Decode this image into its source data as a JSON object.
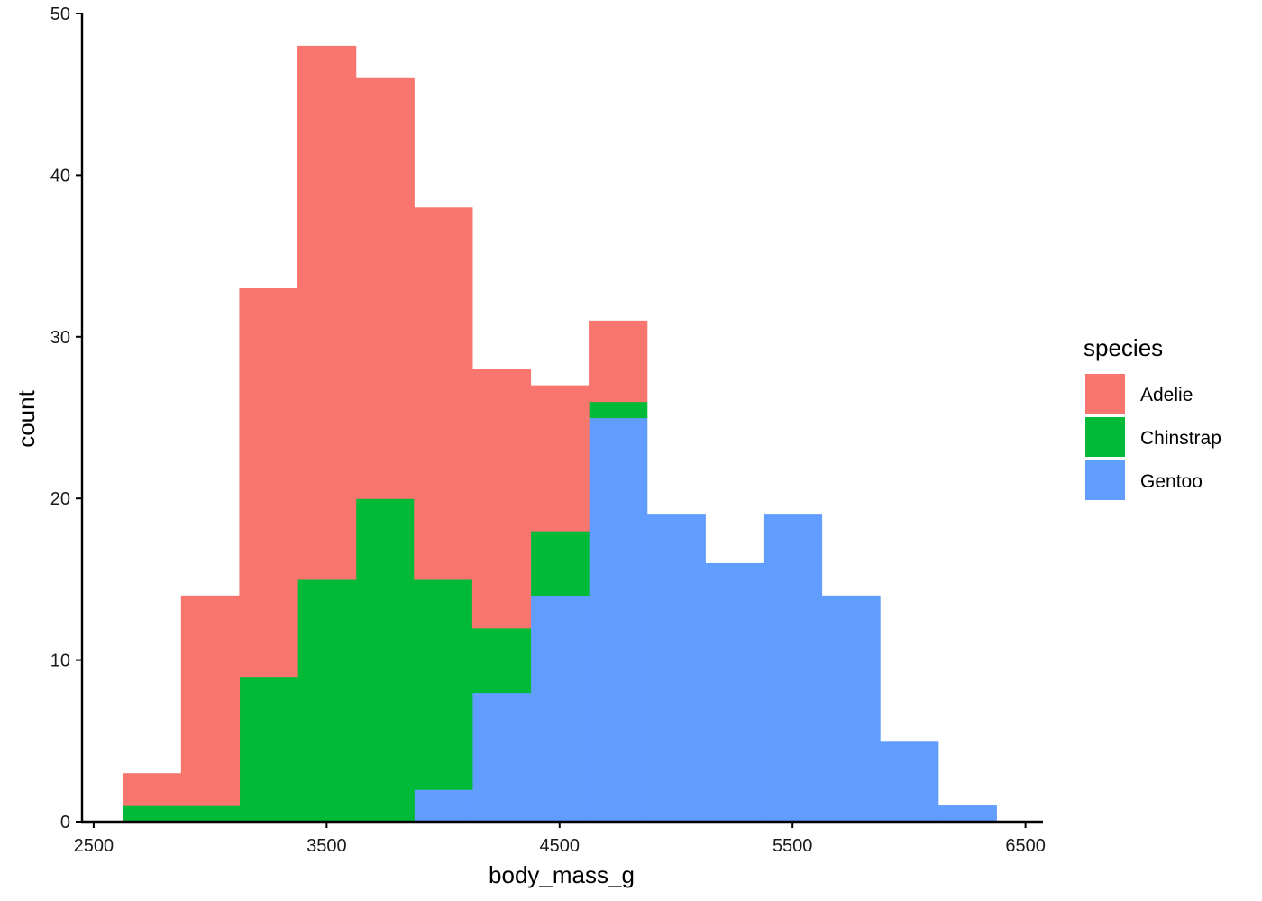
{
  "chart_data": {
    "type": "bar",
    "subtype": "stacked-histogram",
    "xlabel": "body_mass_g",
    "ylabel": "count",
    "xlim": [
      2450,
      6575
    ],
    "ylim": [
      0,
      50
    ],
    "x_ticks": [
      2500,
      3500,
      4500,
      5500,
      6500
    ],
    "y_ticks": [
      0,
      10,
      20,
      30,
      40,
      50
    ],
    "bins": [
      [
        2625,
        2875
      ],
      [
        2875,
        3125
      ],
      [
        3125,
        3375
      ],
      [
        3375,
        3625
      ],
      [
        3625,
        3875
      ],
      [
        3875,
        4125
      ],
      [
        4125,
        4375
      ],
      [
        4375,
        4625
      ],
      [
        4625,
        4875
      ],
      [
        4875,
        5125
      ],
      [
        5125,
        5375
      ],
      [
        5375,
        5625
      ],
      [
        5625,
        5875
      ],
      [
        5875,
        6125
      ],
      [
        6125,
        6375
      ]
    ],
    "series": [
      {
        "name": "Gentoo",
        "color": "#619CFF",
        "values": [
          0,
          0,
          0,
          0,
          0,
          2,
          8,
          14,
          25,
          19,
          16,
          19,
          14,
          5,
          1
        ]
      },
      {
        "name": "Chinstrap",
        "color": "#00BA38",
        "values": [
          1,
          1,
          9,
          15,
          20,
          13,
          4,
          4,
          1,
          0,
          0,
          0,
          0,
          0,
          0
        ]
      },
      {
        "name": "Adelie",
        "color": "#F8766D",
        "values": [
          2,
          13,
          24,
          33,
          26,
          23,
          16,
          9,
          5,
          0,
          0,
          0,
          0,
          0,
          0
        ]
      }
    ],
    "legend": {
      "title": "species",
      "position": "right",
      "entries": [
        "Adelie",
        "Chinstrap",
        "Gentoo"
      ]
    },
    "grid": false
  }
}
